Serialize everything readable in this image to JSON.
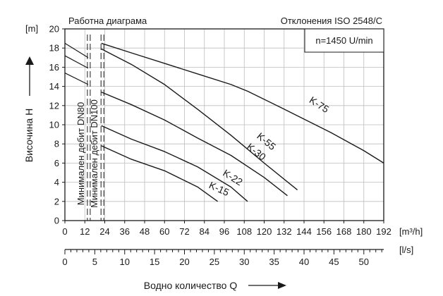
{
  "chart_data": {
    "type": "line",
    "title": "Работна диаграма",
    "subtitle": "Отклонения ISO 2548/C",
    "annotation": "n=1450 U/min",
    "ylabel": "Височина H",
    "yunit": "[m]",
    "xlabel": "Водно количество Q",
    "xunit_primary": "[m³/h]",
    "xunit_secondary": "[l/s]",
    "xlim": [
      0,
      192
    ],
    "ylim": [
      0,
      20
    ],
    "x_ticks": [
      0,
      12,
      24,
      36,
      48,
      60,
      72,
      84,
      96,
      108,
      120,
      132,
      144,
      156,
      168,
      180,
      192
    ],
    "y_ticks": [
      0,
      2,
      4,
      6,
      8,
      10,
      12,
      14,
      16,
      18,
      20
    ],
    "x2_ticks": [
      0,
      5,
      10,
      15,
      20,
      25,
      30,
      35,
      40,
      45,
      50
    ],
    "x2_lim": [
      0,
      53.33
    ],
    "grid": true,
    "series": [
      {
        "name": "K-75",
        "x": [
          22,
          40,
          60,
          80,
          100,
          110,
          130,
          160,
          180,
          192
        ],
        "y": [
          18.5,
          17.5,
          16.4,
          15.3,
          14.2,
          13.5,
          11.8,
          9.2,
          7.3,
          6.0
        ]
      },
      {
        "name": "K-55",
        "x": [
          22,
          40,
          60,
          80,
          100,
          120,
          140
        ],
        "y": [
          17.9,
          16.3,
          14.2,
          11.6,
          8.9,
          6.0,
          3.2
        ]
      },
      {
        "name": "K-30",
        "x": [
          22,
          40,
          60,
          80,
          100,
          120,
          134
        ],
        "y": [
          13.4,
          12.1,
          10.5,
          8.6,
          6.8,
          4.5,
          2.6
        ]
      },
      {
        "name": "K-22",
        "x": [
          22,
          40,
          60,
          80,
          100,
          110
        ],
        "y": [
          9.9,
          8.5,
          7.2,
          5.6,
          3.5,
          2.0
        ]
      },
      {
        "name": "K-15",
        "x": [
          22,
          40,
          60,
          80,
          92
        ],
        "y": [
          7.8,
          6.4,
          5.2,
          3.5,
          2.0
        ]
      }
    ],
    "min_flow_lines": [
      {
        "label": "Минимален дебит DN80",
        "x": 14.4
      },
      {
        "label": "Минимален дебит DN100",
        "x": 22.6
      }
    ]
  },
  "colors": {
    "line": "#1a1a1a",
    "grid": "#bdbdbd",
    "background": "#ffffff"
  }
}
